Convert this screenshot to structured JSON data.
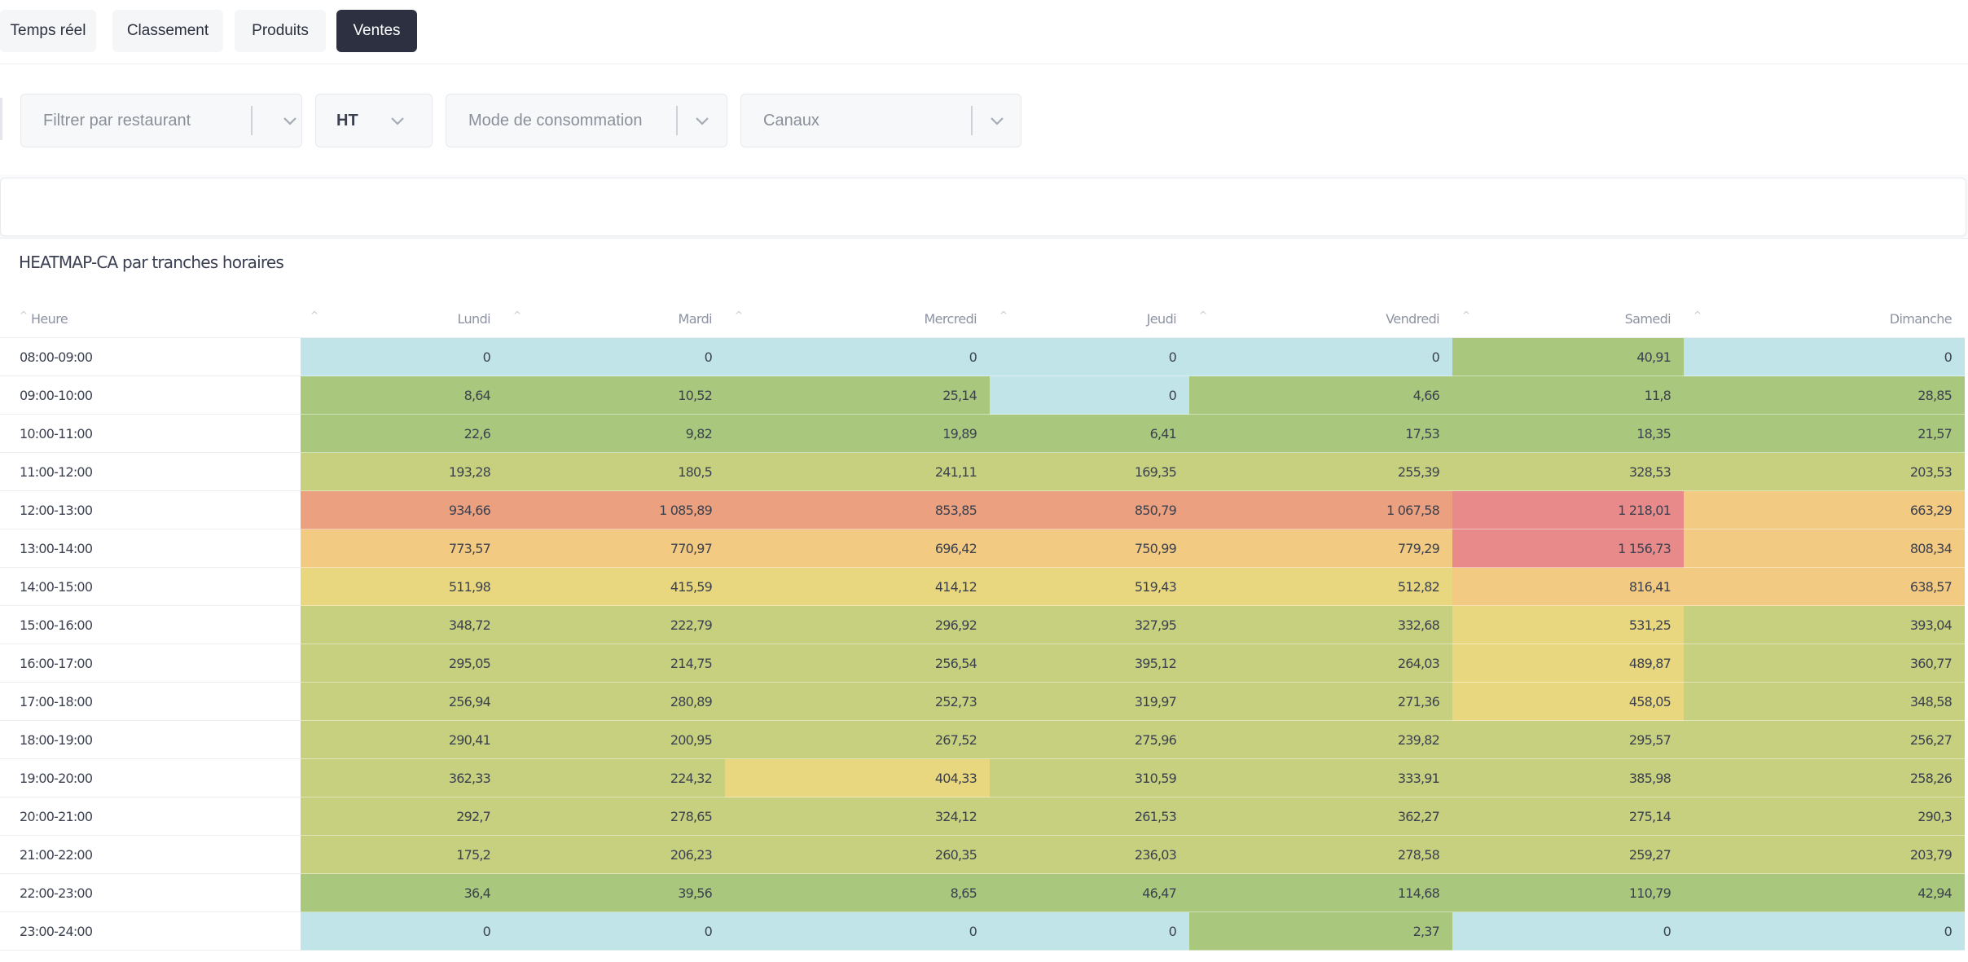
{
  "tabs": [
    "Temps réel",
    "Classement",
    "Produits",
    "Ventes"
  ],
  "active_tab": "Ventes",
  "filters": {
    "restaurant_placeholder": "Filtrer par restaurant",
    "tax_mode_value": "HT",
    "consumption_placeholder": "Mode de consommation",
    "channels_placeholder": "Canaux"
  },
  "heatmap": {
    "title": "HEATMAP-CA par tranches horaires",
    "hour_header": "Heure",
    "days": [
      "Lundi",
      "Mardi",
      "Mercredi",
      "Jeudi",
      "Vendredi",
      "Samedi",
      "Dimanche"
    ],
    "rows": [
      {
        "hour": "08:00-09:00",
        "values": [
          "0",
          "0",
          "0",
          "0",
          "0",
          "40,91",
          "0"
        ]
      },
      {
        "hour": "09:00-10:00",
        "values": [
          "8,64",
          "10,52",
          "25,14",
          "0",
          "4,66",
          "11,8",
          "28,85"
        ]
      },
      {
        "hour": "10:00-11:00",
        "values": [
          "22,6",
          "9,82",
          "19,89",
          "6,41",
          "17,53",
          "18,35",
          "21,57"
        ]
      },
      {
        "hour": "11:00-12:00",
        "values": [
          "193,28",
          "180,5",
          "241,11",
          "169,35",
          "255,39",
          "328,53",
          "203,53"
        ]
      },
      {
        "hour": "12:00-13:00",
        "values": [
          "934,66",
          "1 085,89",
          "853,85",
          "850,79",
          "1 067,58",
          "1 218,01",
          "663,29"
        ]
      },
      {
        "hour": "13:00-14:00",
        "values": [
          "773,57",
          "770,97",
          "696,42",
          "750,99",
          "779,29",
          "1 156,73",
          "808,34"
        ]
      },
      {
        "hour": "14:00-15:00",
        "values": [
          "511,98",
          "415,59",
          "414,12",
          "519,43",
          "512,82",
          "816,41",
          "638,57"
        ]
      },
      {
        "hour": "15:00-16:00",
        "values": [
          "348,72",
          "222,79",
          "296,92",
          "327,95",
          "332,68",
          "531,25",
          "393,04"
        ]
      },
      {
        "hour": "16:00-17:00",
        "values": [
          "295,05",
          "214,75",
          "256,54",
          "395,12",
          "264,03",
          "489,87",
          "360,77"
        ]
      },
      {
        "hour": "17:00-18:00",
        "values": [
          "256,94",
          "280,89",
          "252,73",
          "319,97",
          "271,36",
          "458,05",
          "348,58"
        ]
      },
      {
        "hour": "18:00-19:00",
        "values": [
          "290,41",
          "200,95",
          "267,52",
          "275,96",
          "239,82",
          "295,57",
          "256,27"
        ]
      },
      {
        "hour": "19:00-20:00",
        "values": [
          "362,33",
          "224,32",
          "404,33",
          "310,59",
          "333,91",
          "385,98",
          "258,26"
        ]
      },
      {
        "hour": "20:00-21:00",
        "values": [
          "292,7",
          "278,65",
          "324,12",
          "261,53",
          "362,27",
          "275,14",
          "290,3"
        ]
      },
      {
        "hour": "21:00-22:00",
        "values": [
          "175,2",
          "206,23",
          "260,35",
          "236,03",
          "278,58",
          "259,27",
          "203,79"
        ]
      },
      {
        "hour": "22:00-23:00",
        "values": [
          "36,4",
          "39,56",
          "8,65",
          "46,47",
          "114,68",
          "110,79",
          "42,94"
        ]
      },
      {
        "hour": "23:00-24:00",
        "values": [
          "0",
          "0",
          "0",
          "0",
          "2,37",
          "0",
          "0"
        ]
      }
    ]
  },
  "colors": {
    "zero": "#c0e4e8",
    "low": "#a9c87d",
    "mid_low": "#c6d07f",
    "mid": "#e9d77f",
    "high": "#f3ca82",
    "very_high": "#eba17f",
    "max": "#e88a8a",
    "active_tab_bg": "#2c3040"
  }
}
